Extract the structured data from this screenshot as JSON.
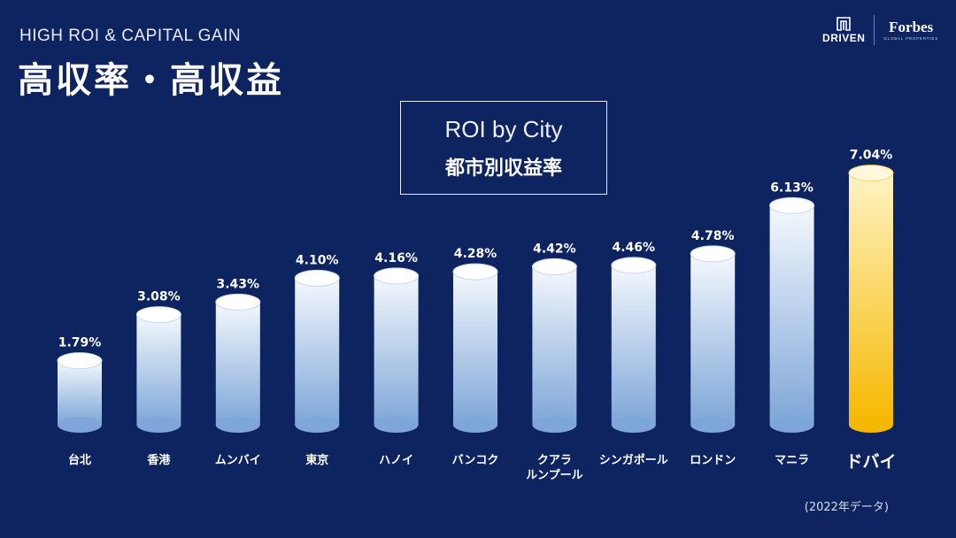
{
  "header": {
    "subtitle": "HIGH ROI & CAPITAL GAIN",
    "title": "高収率・高収益"
  },
  "logos": {
    "driven": "DRIVEN",
    "forbes": "Forbes",
    "forbes_sub": "GLOBAL PROPERTIES"
  },
  "note": "(2022年データ)",
  "colors": {
    "background": "#0d2460",
    "bar_top": "#f4f8fd",
    "bar_bottom": "#7ea6d8",
    "highlight_top": "#fff3c4",
    "highlight_bottom": "#f5b800"
  },
  "chart_data": {
    "type": "bar",
    "title": "ROI by City",
    "subtitle": "都市別収益率",
    "categories": [
      "台北",
      "香港",
      "ムンバイ",
      "東京",
      "ハノイ",
      "バンコク",
      "クアラ\nルンプール",
      "シンガポール",
      "ロンドン",
      "マニラ",
      "ドバイ"
    ],
    "values": [
      1.79,
      3.08,
      3.43,
      4.1,
      4.16,
      4.28,
      4.42,
      4.46,
      4.78,
      6.13,
      7.04
    ],
    "value_labels": [
      "1.79%",
      "3.08%",
      "3.43%",
      "4.10%",
      "4.16%",
      "4.28%",
      "4.42%",
      "4.46%",
      "4.78%",
      "6.13%",
      "7.04%"
    ],
    "highlight": "ドバイ",
    "grid": false
  }
}
